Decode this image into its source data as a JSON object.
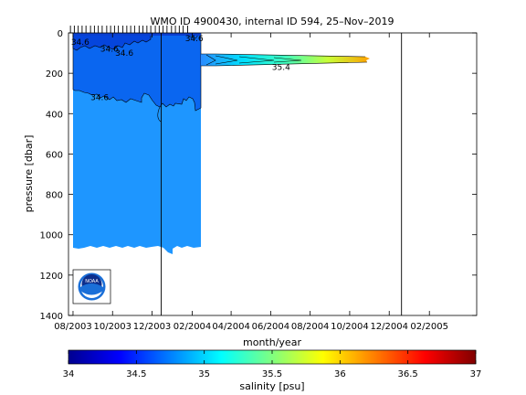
{
  "chart_data": {
    "type": "heatmap",
    "title": "WMO ID 4900430, internal ID 594, 25–Nov–2019",
    "xlabel": "month/year",
    "ylabel": "pressure [dbar]",
    "x_axis": {
      "type": "date",
      "range": [
        "2003-07-25",
        "2005-04-15"
      ],
      "ticks": [
        "2003-08-01",
        "2003-10-01",
        "2003-12-01",
        "2004-02-01",
        "2004-04-01",
        "2004-06-01",
        "2004-08-01",
        "2004-10-01",
        "2004-12-01",
        "2005-02-01"
      ],
      "tick_labels": [
        "08/2003",
        "10/2003",
        "12/2003",
        "02/2004",
        "04/2004",
        "06/2004",
        "08/2004",
        "10/2004",
        "12/2004",
        "02/2005"
      ]
    },
    "y_axis": {
      "range": [
        0,
        1400
      ],
      "reversed": true,
      "ticks": [
        0,
        200,
        400,
        600,
        800,
        1000,
        1200,
        1400
      ],
      "tick_labels": [
        "0",
        "200",
        "400",
        "600",
        "800",
        "1000",
        "1200",
        "1400"
      ]
    },
    "colorbar": {
      "label": "salinity [psu]",
      "range": [
        34,
        37
      ],
      "ticks": [
        34,
        34.5,
        35,
        35.5,
        36,
        36.5,
        37
      ],
      "tick_labels": [
        "34",
        "34.5",
        "35",
        "35.5",
        "36",
        "36.5",
        "37"
      ],
      "colormap": "jet"
    },
    "vertical_lines": [
      "2003-12-15",
      "2004-12-20"
    ],
    "profile_dates": [
      "2003-07-28",
      "2003-08-03",
      "2003-08-09",
      "2003-08-15",
      "2003-08-21",
      "2003-08-28",
      "2003-09-03",
      "2003-09-09",
      "2003-09-15",
      "2003-09-22",
      "2003-09-28",
      "2003-10-04",
      "2003-10-10",
      "2003-10-17",
      "2003-10-23",
      "2003-10-29",
      "2003-11-04",
      "2003-11-11",
      "2003-11-17",
      "2003-11-23",
      "2003-11-29",
      "2003-12-06",
      "2003-12-12",
      "2003-12-18",
      "2003-12-24",
      "2003-12-31",
      "2004-01-06",
      "2004-01-12",
      "2004-01-18",
      "2004-01-25"
    ],
    "regions": [
      {
        "description": "deep layer",
        "date_range": [
          "2003-07-28",
          "2004-01-28"
        ],
        "pressure_range": [
          300,
          1080
        ],
        "salinity": 34.85
      },
      {
        "description": "upper layer",
        "date_range": [
          "2003-07-28",
          "2004-01-28"
        ],
        "pressure_range": [
          0,
          300
        ],
        "salinity": 34.65
      },
      {
        "description": "near-surface layer",
        "date_range": [
          "2003-07-28",
          "2003-11-15"
        ],
        "pressure_range": [
          0,
          50
        ],
        "salinity": 34.55
      },
      {
        "description": "intrusion",
        "date_range": [
          "2004-01-28",
          "2004-10-02"
        ],
        "pressure_range": [
          105,
          165
        ],
        "salinity_range": [
          34.9,
          36.1
        ]
      }
    ],
    "contour_labels": [
      {
        "text": "34.6",
        "date": "2003-07-29",
        "pressure": 45
      },
      {
        "text": "34.6",
        "date": "2003-09-12",
        "pressure": 80
      },
      {
        "text": "34.6",
        "date": "2003-10-05",
        "pressure": 100
      },
      {
        "text": "34.6",
        "date": "2004-01-21",
        "pressure": 28
      },
      {
        "text": "34.6",
        "date": "2003-08-28",
        "pressure": 320
      },
      {
        "text": "35.4",
        "date": "2004-06-03",
        "pressure": 170
      }
    ],
    "logo": "NOAA"
  }
}
